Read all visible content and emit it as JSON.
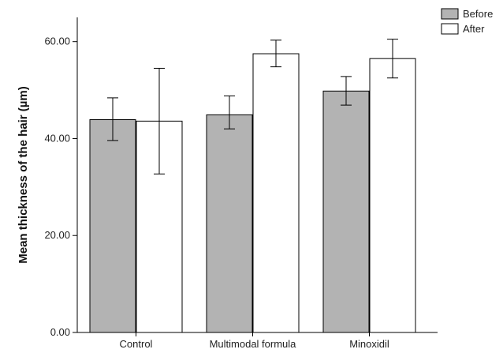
{
  "chart_data": {
    "type": "bar",
    "categories": [
      "Control",
      "Multimodal formula",
      "Minoxidil"
    ],
    "series": [
      {
        "name": "Before",
        "color": "#b3b3b3",
        "values": [
          43.9,
          44.9,
          49.8
        ],
        "error_low": [
          39.6,
          42.0,
          46.9
        ],
        "error_high": [
          48.4,
          48.8,
          52.8
        ]
      },
      {
        "name": "After",
        "color": "#ffffff",
        "values": [
          43.6,
          57.5,
          56.5
        ],
        "error_low": [
          32.7,
          54.8,
          52.5
        ],
        "error_high": [
          54.5,
          60.3,
          60.5
        ]
      }
    ],
    "ylabel": "Mean thickness of the hair (µm)",
    "xlabel": "",
    "ylim": [
      0,
      65
    ],
    "yticks": [
      0,
      20,
      40,
      60
    ],
    "ytick_labels": [
      "0.00",
      "20.00",
      "40.00",
      "60.00"
    ],
    "grid": false,
    "legend_position": "top-right"
  }
}
